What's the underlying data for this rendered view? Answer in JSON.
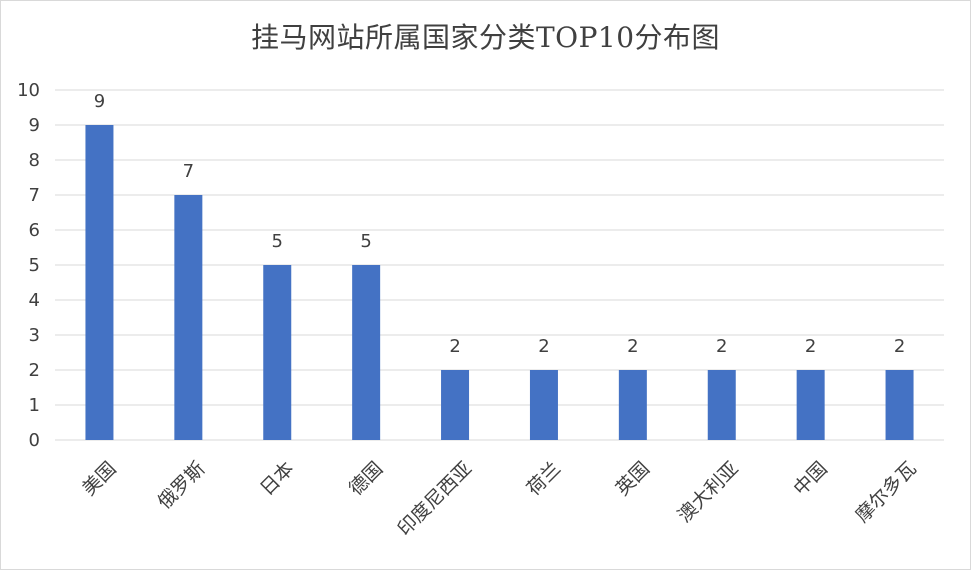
{
  "chart_data": {
    "type": "bar",
    "title": "挂马网站所属国家分类TOP10分布图",
    "categories": [
      "美国",
      "俄罗斯",
      "日本",
      "德国",
      "印度尼西亚",
      "荷兰",
      "英国",
      "澳大利亚",
      "中国",
      "摩尔多瓦"
    ],
    "values": [
      9,
      7,
      5,
      5,
      2,
      2,
      2,
      2,
      2,
      2
    ],
    "ylim": [
      0,
      10
    ],
    "yticks": [
      "0",
      "1",
      "2",
      "3",
      "4",
      "5",
      "6",
      "7",
      "8",
      "9",
      "10"
    ],
    "xlabel": "",
    "ylabel": "",
    "grid": true,
    "data_labels": true,
    "bar_color": "#4472C4",
    "grid_color": "#d9d9d9"
  }
}
